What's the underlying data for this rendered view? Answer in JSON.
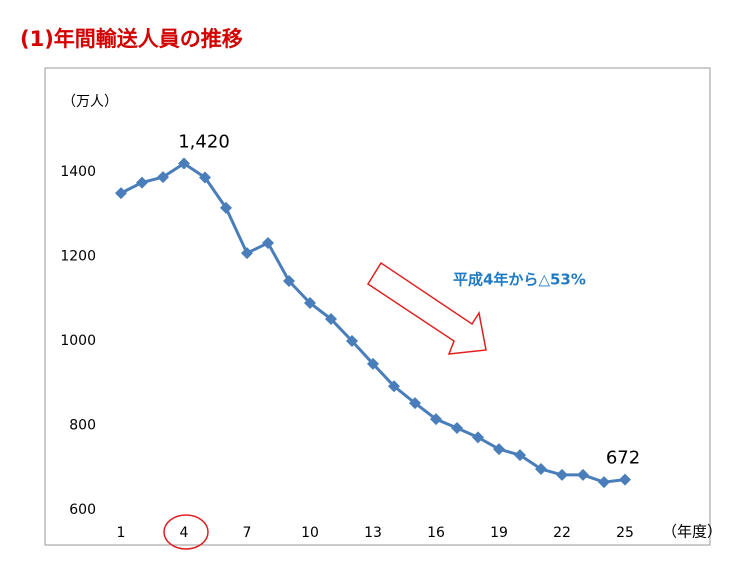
{
  "chart_data": {
    "type": "line",
    "title": "(1)年間輸送人員の推移",
    "y_label": "（万人）",
    "x_label": "（年度）",
    "annotation": "平成4年から△53%",
    "x": [
      1,
      2,
      3,
      4,
      5,
      6,
      7,
      8,
      9,
      10,
      11,
      12,
      13,
      14,
      15,
      16,
      17,
      18,
      19,
      20,
      21,
      22,
      23,
      24,
      25
    ],
    "series": [
      {
        "color": "#4a7ebb",
        "values": [
          1350,
          1375,
          1388,
          1420,
          1387,
          1315,
          1208,
          1232,
          1142,
          1090,
          1052,
          1000,
          946,
          893,
          853,
          815,
          794,
          772,
          744,
          730,
          697,
          683,
          683,
          666,
          672
        ],
        "value_labels": [
          null,
          null,
          null,
          "1,420",
          null,
          null,
          null,
          null,
          null,
          null,
          null,
          null,
          null,
          null,
          null,
          null,
          null,
          null,
          null,
          null,
          null,
          null,
          null,
          null,
          "672"
        ]
      }
    ],
    "xlim": [
      1,
      25
    ],
    "xticks": [
      1,
      4,
      7,
      10,
      13,
      16,
      19,
      22,
      25
    ],
    "ylim": [
      600,
      1600
    ],
    "yticks": [
      600,
      800,
      1000,
      1200,
      1400
    ]
  }
}
